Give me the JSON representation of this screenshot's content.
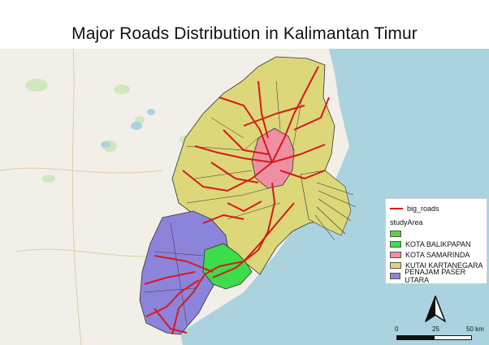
{
  "title": "Major Roads Distribution in Kalimantan Timur",
  "legend": {
    "line_layer": "big_roads",
    "group_title": "studyArea",
    "items": [
      {
        "label": "",
        "color": "#5fd13a"
      },
      {
        "label": "KOTA BALIKPAPAN",
        "color": "#3ddc4a"
      },
      {
        "label": "KOTA SAMARINDA",
        "color": "#ee8fa2"
      },
      {
        "label": "KUTAI KARTANEGARA",
        "color": "#dcd778"
      },
      {
        "label": "PENAJAM PASER UTARA",
        "color": "#8c84db"
      }
    ]
  },
  "scalebar": {
    "labels": [
      "0",
      "25",
      "50 km"
    ]
  },
  "colors": {
    "sea": "#aad3df",
    "land": "#f2efe9",
    "roads": "#d7191c",
    "boundary": "#333333",
    "forest": "#c8e6b4"
  },
  "icons": {
    "north_arrow": "north-arrow-icon"
  }
}
